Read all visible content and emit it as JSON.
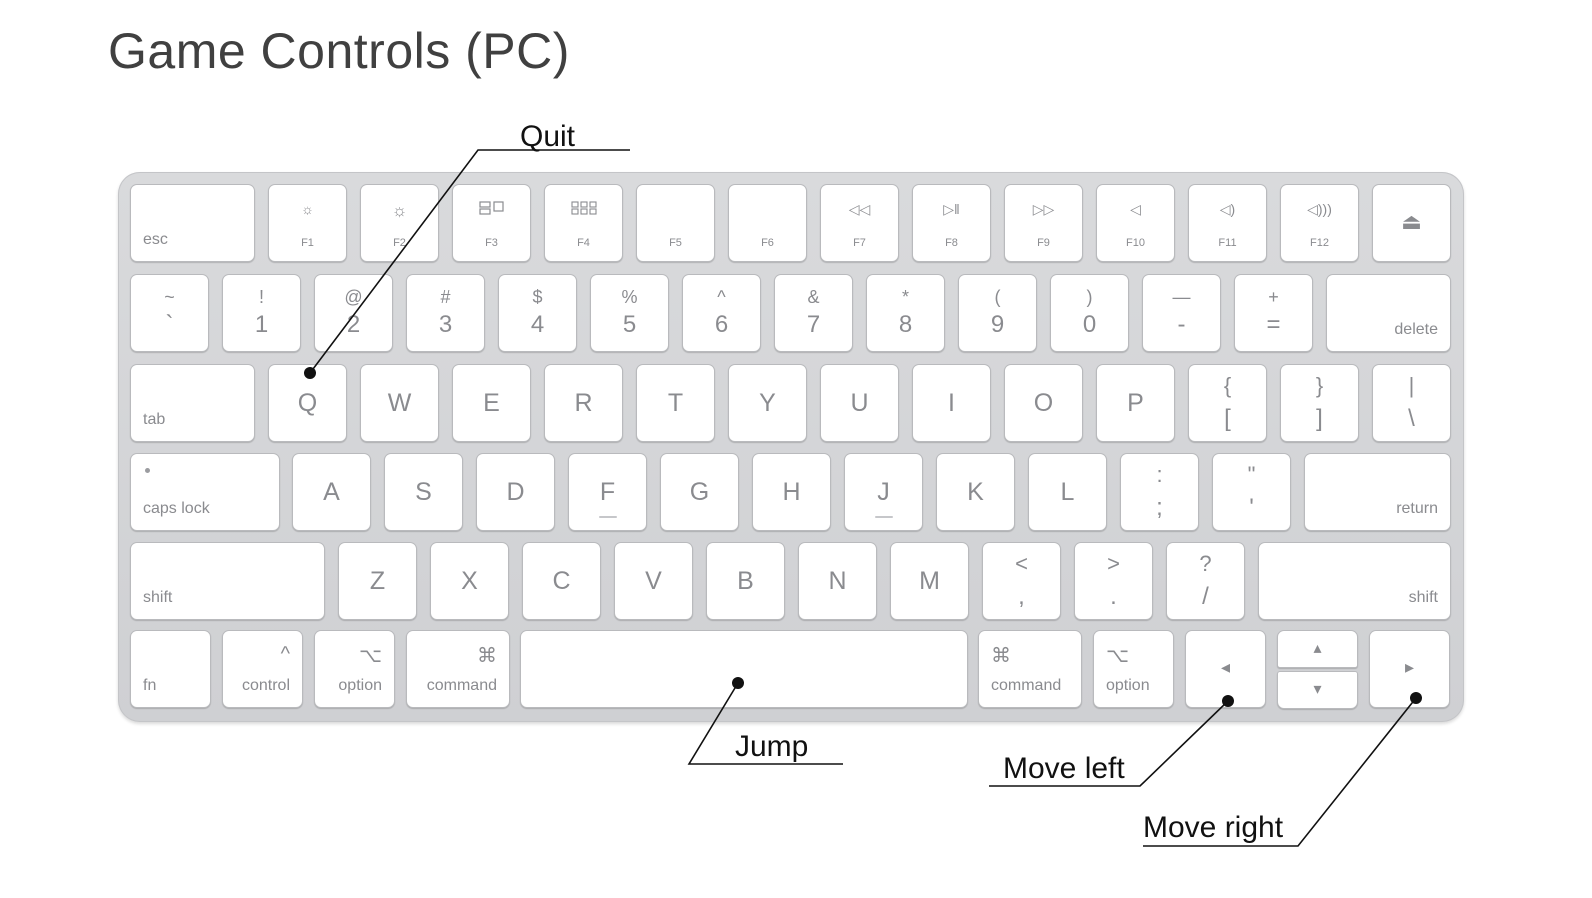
{
  "title": "Game Controls (PC)",
  "callouts": {
    "quit": "Quit",
    "jump": "Jump",
    "move_left": "Move left",
    "move_right": "Move right"
  },
  "keys": {
    "esc": "esc",
    "f1": "F1",
    "f2": "F2",
    "f3": "F3",
    "f4": "F4",
    "f5": "F5",
    "f6": "F6",
    "f7": "F7",
    "f8": "F8",
    "f9": "F9",
    "f10": "F10",
    "f11": "F11",
    "f12": "F12",
    "tilde_top": "~",
    "tilde_bot": "`",
    "n1_top": "!",
    "n1": "1",
    "n2_top": "@",
    "n2": "2",
    "n3_top": "#",
    "n3": "3",
    "n4_top": "$",
    "n4": "4",
    "n5_top": "%",
    "n5": "5",
    "n6_top": "^",
    "n6": "6",
    "n7_top": "&",
    "n7": "7",
    "n8_top": "*",
    "n8": "8",
    "n9_top": "(",
    "n9": "9",
    "n0_top": ")",
    "n0": "0",
    "minus_top": "—",
    "minus": "-",
    "eq_top": "+",
    "eq": "=",
    "delete": "delete",
    "tab": "tab",
    "q": "Q",
    "w": "W",
    "e": "E",
    "r": "R",
    "t": "T",
    "y": "Y",
    "u": "U",
    "i": "I",
    "o": "O",
    "p": "P",
    "lbrace_top": "{",
    "lbrace": "[",
    "rbrace_top": "}",
    "rbrace": "]",
    "pipe_top": "|",
    "pipe": "\\",
    "caps_lock": "caps lock",
    "a": "A",
    "s": "S",
    "d": "D",
    "f": "F",
    "g": "G",
    "h": "H",
    "j": "J",
    "k": "K",
    "l": "L",
    "colon_top": ":",
    "colon": ";",
    "quote_top": "\"",
    "quote": "'",
    "return": "return",
    "shift": "shift",
    "z": "Z",
    "x": "X",
    "c": "C",
    "v": "V",
    "b": "B",
    "n": "N",
    "m": "M",
    "lt_top": "<",
    "lt": ",",
    "gt_top": ">",
    "gt": ".",
    "q_top": "?",
    "slash": "/",
    "fn": "fn",
    "control": "control",
    "option": "option",
    "command": "command",
    "control_sym": "^",
    "option_sym": "⌥",
    "command_sym": "⌘",
    "arrow_left": "◂",
    "arrow_right": "▸",
    "arrow_up": "▴",
    "arrow_down": "▾",
    "eject": "⏏"
  },
  "icons": {
    "f1": "brightness-down-icon",
    "f2": "brightness-up-icon",
    "f3": "mission-control-icon",
    "f4": "launchpad-icon",
    "f7": "rewind-icon",
    "f8": "play-pause-icon",
    "f9": "fast-forward-icon",
    "f10": "mute-icon",
    "f11": "volume-down-icon",
    "f12": "volume-up-icon"
  }
}
